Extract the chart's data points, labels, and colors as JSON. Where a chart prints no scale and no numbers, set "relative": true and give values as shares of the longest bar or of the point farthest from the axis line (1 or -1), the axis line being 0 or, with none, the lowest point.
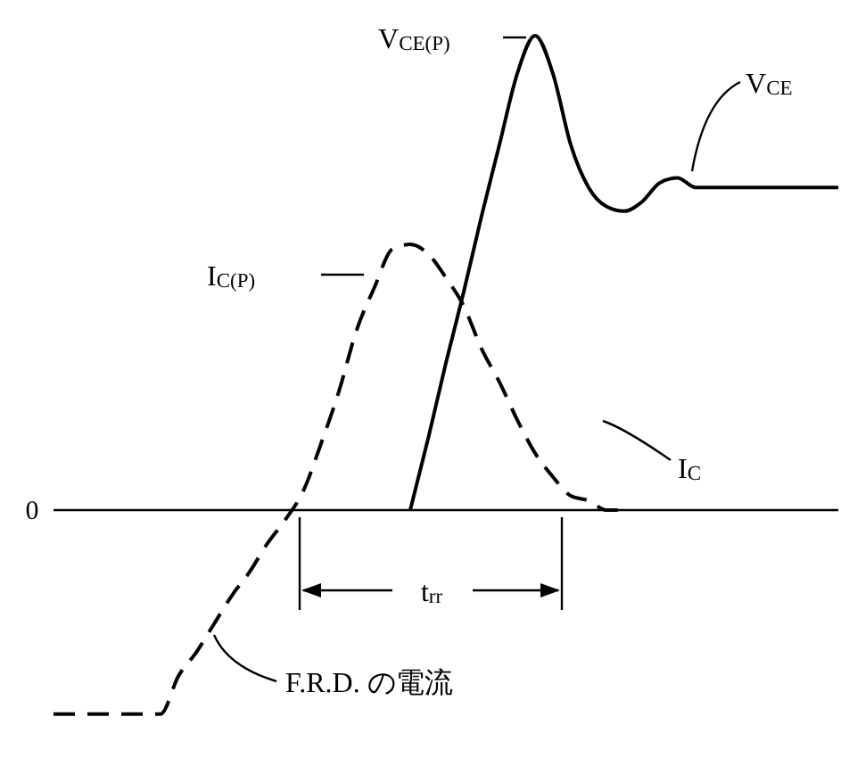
{
  "chart_data": {
    "type": "line",
    "relative": true,
    "categories": [
      null,
      null,
      null,
      null,
      null,
      null,
      null,
      null,
      null,
      null,
      null,
      null,
      null,
      null,
      null,
      null,
      null,
      null,
      null,
      null,
      null,
      null,
      null,
      null,
      null,
      null,
      null,
      null,
      null,
      null,
      null,
      null,
      null,
      null,
      null,
      null,
      null,
      null,
      null,
      null,
      null,
      null,
      null,
      null,
      null
    ],
    "series": [
      {
        "color": "#000000",
        "line_style": "solid",
        "values": [
          null,
          null,
          null,
          null,
          null,
          null,
          null,
          null,
          null,
          null,
          null,
          null,
          null,
          null,
          null,
          null,
          null,
          null,
          null,
          null,
          0,
          0.15,
          0.31,
          0.46,
          0.62,
          0.77,
          0.92,
          1.0,
          0.92,
          0.77,
          0.68,
          0.64,
          0.63,
          0.65,
          0.69,
          0.7,
          0.68,
          0.68,
          0.68,
          0.68,
          0.68,
          0.68,
          0.68,
          0.68,
          0.68
        ]
      },
      {
        "color": "#000000",
        "line_style": "dashed",
        "values": [
          -0.43,
          -0.43,
          -0.43,
          -0.43,
          -0.43,
          -0.43,
          -0.43,
          -0.35,
          -0.3,
          -0.24,
          -0.18,
          -0.13,
          -0.07,
          -0.02,
          0.04,
          0.14,
          0.25,
          0.38,
          0.47,
          0.55,
          0.56,
          0.54,
          0.49,
          0.43,
          0.34,
          0.27,
          0.19,
          0.12,
          0.07,
          0.03,
          0.02,
          0,
          0,
          null,
          null,
          null,
          null,
          null,
          null,
          null,
          null,
          null,
          null,
          null,
          null
        ]
      }
    ],
    "ref_lines": [
      {
        "axis": "y",
        "value": 0,
        "label": "0"
      }
    ],
    "annotations": [
      "V$_{CE(P)}$",
      "V$_{CE}$",
      "I$_{C(P)}$",
      "I$_{C}$",
      "t$_{rr}$",
      "F.R.D. の電流"
    ]
  }
}
